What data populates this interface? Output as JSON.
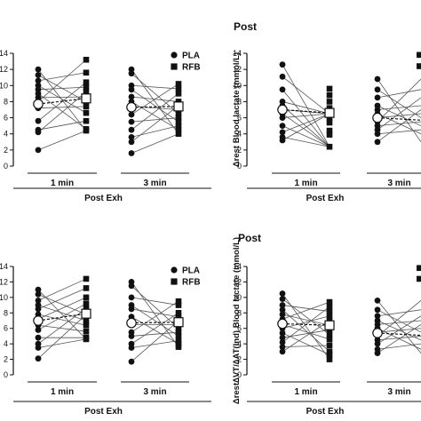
{
  "legend": [
    {
      "name": "PLA",
      "marker": "circle"
    },
    {
      "name": "RFB",
      "marker": "square"
    }
  ],
  "colors": {
    "marker": "#111111",
    "line": "#555555",
    "mean_fill": "#ffffff"
  },
  "chart_data": [
    {
      "id": "top-left",
      "type": "scatter",
      "title": "",
      "ylabel": "",
      "xlabel": "Post Exh",
      "categories": [
        "1 min",
        "3 min"
      ],
      "ylim": [
        0,
        14
      ],
      "yticks": [
        0,
        2,
        4,
        6,
        8,
        10,
        12,
        14
      ],
      "legend_shown": true,
      "groups": [
        {
          "category": "1 min",
          "PLA": [
            12.0,
            11.3,
            10.6,
            10.0,
            9.5,
            9.0,
            8.5,
            8.0,
            7.2,
            5.6,
            4.5,
            4.2,
            2.0
          ],
          "RFB": [
            13.2,
            11.6,
            10.4,
            9.8,
            9.2,
            8.6,
            8.0,
            7.4,
            6.6,
            5.6,
            4.6,
            4.4
          ],
          "mean_PLA": 7.7,
          "mean_RFB": 8.4
        },
        {
          "category": "3 min",
          "PLA": [
            12.0,
            11.5,
            10.0,
            9.5,
            8.6,
            8.0,
            7.4,
            6.4,
            5.5,
            4.5,
            3.6,
            3.0,
            1.6
          ],
          "RFB": [
            10.2,
            9.6,
            9.0,
            8.0,
            7.5,
            7.0,
            6.5,
            6.0,
            5.5,
            5.0,
            4.5,
            4.0
          ],
          "mean_PLA": 7.3,
          "mean_RFB": 7.4
        }
      ]
    },
    {
      "id": "top-right",
      "type": "scatter",
      "title": "Post",
      "ylabel": "Δrest Blood lactate (mmol/L)",
      "xlabel": "Post Exh",
      "categories": [
        "1 min",
        "3 min"
      ],
      "ylim": [
        0,
        14
      ],
      "yticks": [
        0,
        2,
        4,
        6,
        8,
        10,
        12,
        14
      ],
      "legend_shown": false,
      "groups": [
        {
          "category": "1 min",
          "PLA": [
            12.6,
            11.1,
            9.5,
            8.0,
            7.5,
            7.0,
            6.5,
            6.0,
            5.0,
            4.2,
            3.6,
            3.2
          ],
          "RFB": [
            9.6,
            8.8,
            8.0,
            7.2,
            6.5,
            6.0,
            5.4,
            4.4,
            3.9,
            2.4
          ],
          "mean_PLA": 7.0,
          "mean_RFB": 6.6
        },
        {
          "category": "3 min",
          "PLA": [
            10.8,
            9.5,
            8.5,
            7.5,
            7.0,
            6.5,
            6.0,
            5.5,
            5.0,
            4.5,
            4.0,
            3.0
          ],
          "RFB": [],
          "mean_PLA": 6.0,
          "mean_RFB": null
        }
      ]
    },
    {
      "id": "bottom-left",
      "type": "scatter",
      "title": "",
      "ylabel": "",
      "xlabel": "Post Exh",
      "categories": [
        "1 min",
        "3 min"
      ],
      "ylim": [
        0,
        14
      ],
      "yticks": [
        0,
        2,
        4,
        6,
        8,
        10,
        12,
        14
      ],
      "legend_shown": true,
      "groups": [
        {
          "category": "1 min",
          "PLA": [
            11.0,
            10.4,
            9.6,
            9.0,
            8.5,
            7.8,
            7.2,
            6.4,
            5.8,
            4.8,
            4.0,
            3.5,
            2.1
          ],
          "RFB": [
            12.4,
            11.2,
            10.0,
            9.2,
            8.6,
            7.8,
            7.0,
            6.4,
            5.6,
            4.8,
            4.6
          ],
          "mean_PLA": 7.0,
          "mean_RFB": 7.9
        },
        {
          "category": "3 min",
          "PLA": [
            12.0,
            11.5,
            10.0,
            9.0,
            8.5,
            7.5,
            6.5,
            5.5,
            5.0,
            4.0,
            3.5,
            1.7
          ],
          "RFB": [
            9.5,
            9.0,
            8.0,
            7.5,
            7.0,
            6.5,
            6.0,
            5.5,
            5.0,
            4.4,
            4.0,
            3.6
          ],
          "mean_PLA": 6.7,
          "mean_RFB": 6.8
        }
      ]
    },
    {
      "id": "bottom-right",
      "type": "scatter",
      "title": "Post",
      "ylabel": "Δrest∆VT/∆AT(Ind) Blood lactate (mmol/L)",
      "xlabel": "Post Exh",
      "categories": [
        "1 min",
        "3 min"
      ],
      "ylim": [
        0,
        14
      ],
      "yticks": [
        0,
        2,
        4,
        6,
        8,
        10,
        12,
        14
      ],
      "legend_shown": false,
      "groups": [
        {
          "category": "1 min",
          "PLA": [
            10.5,
            9.8,
            9.0,
            8.4,
            7.8,
            7.2,
            6.5,
            6.0,
            5.4,
            4.8,
            4.2,
            3.6,
            3.0
          ],
          "RFB": [
            9.4,
            8.8,
            8.2,
            7.6,
            7.0,
            6.4,
            5.8,
            5.2,
            4.6,
            3.8,
            3.0,
            2.6,
            2.0
          ],
          "mean_PLA": 6.6,
          "mean_RFB": 6.4
        },
        {
          "category": "3 min",
          "PLA": [
            9.6,
            8.4,
            7.6,
            7.0,
            6.5,
            6.0,
            5.5,
            5.0,
            4.5,
            4.0,
            3.3,
            2.8
          ],
          "RFB": [],
          "mean_PLA": 5.4,
          "mean_RFB": null
        }
      ]
    }
  ]
}
